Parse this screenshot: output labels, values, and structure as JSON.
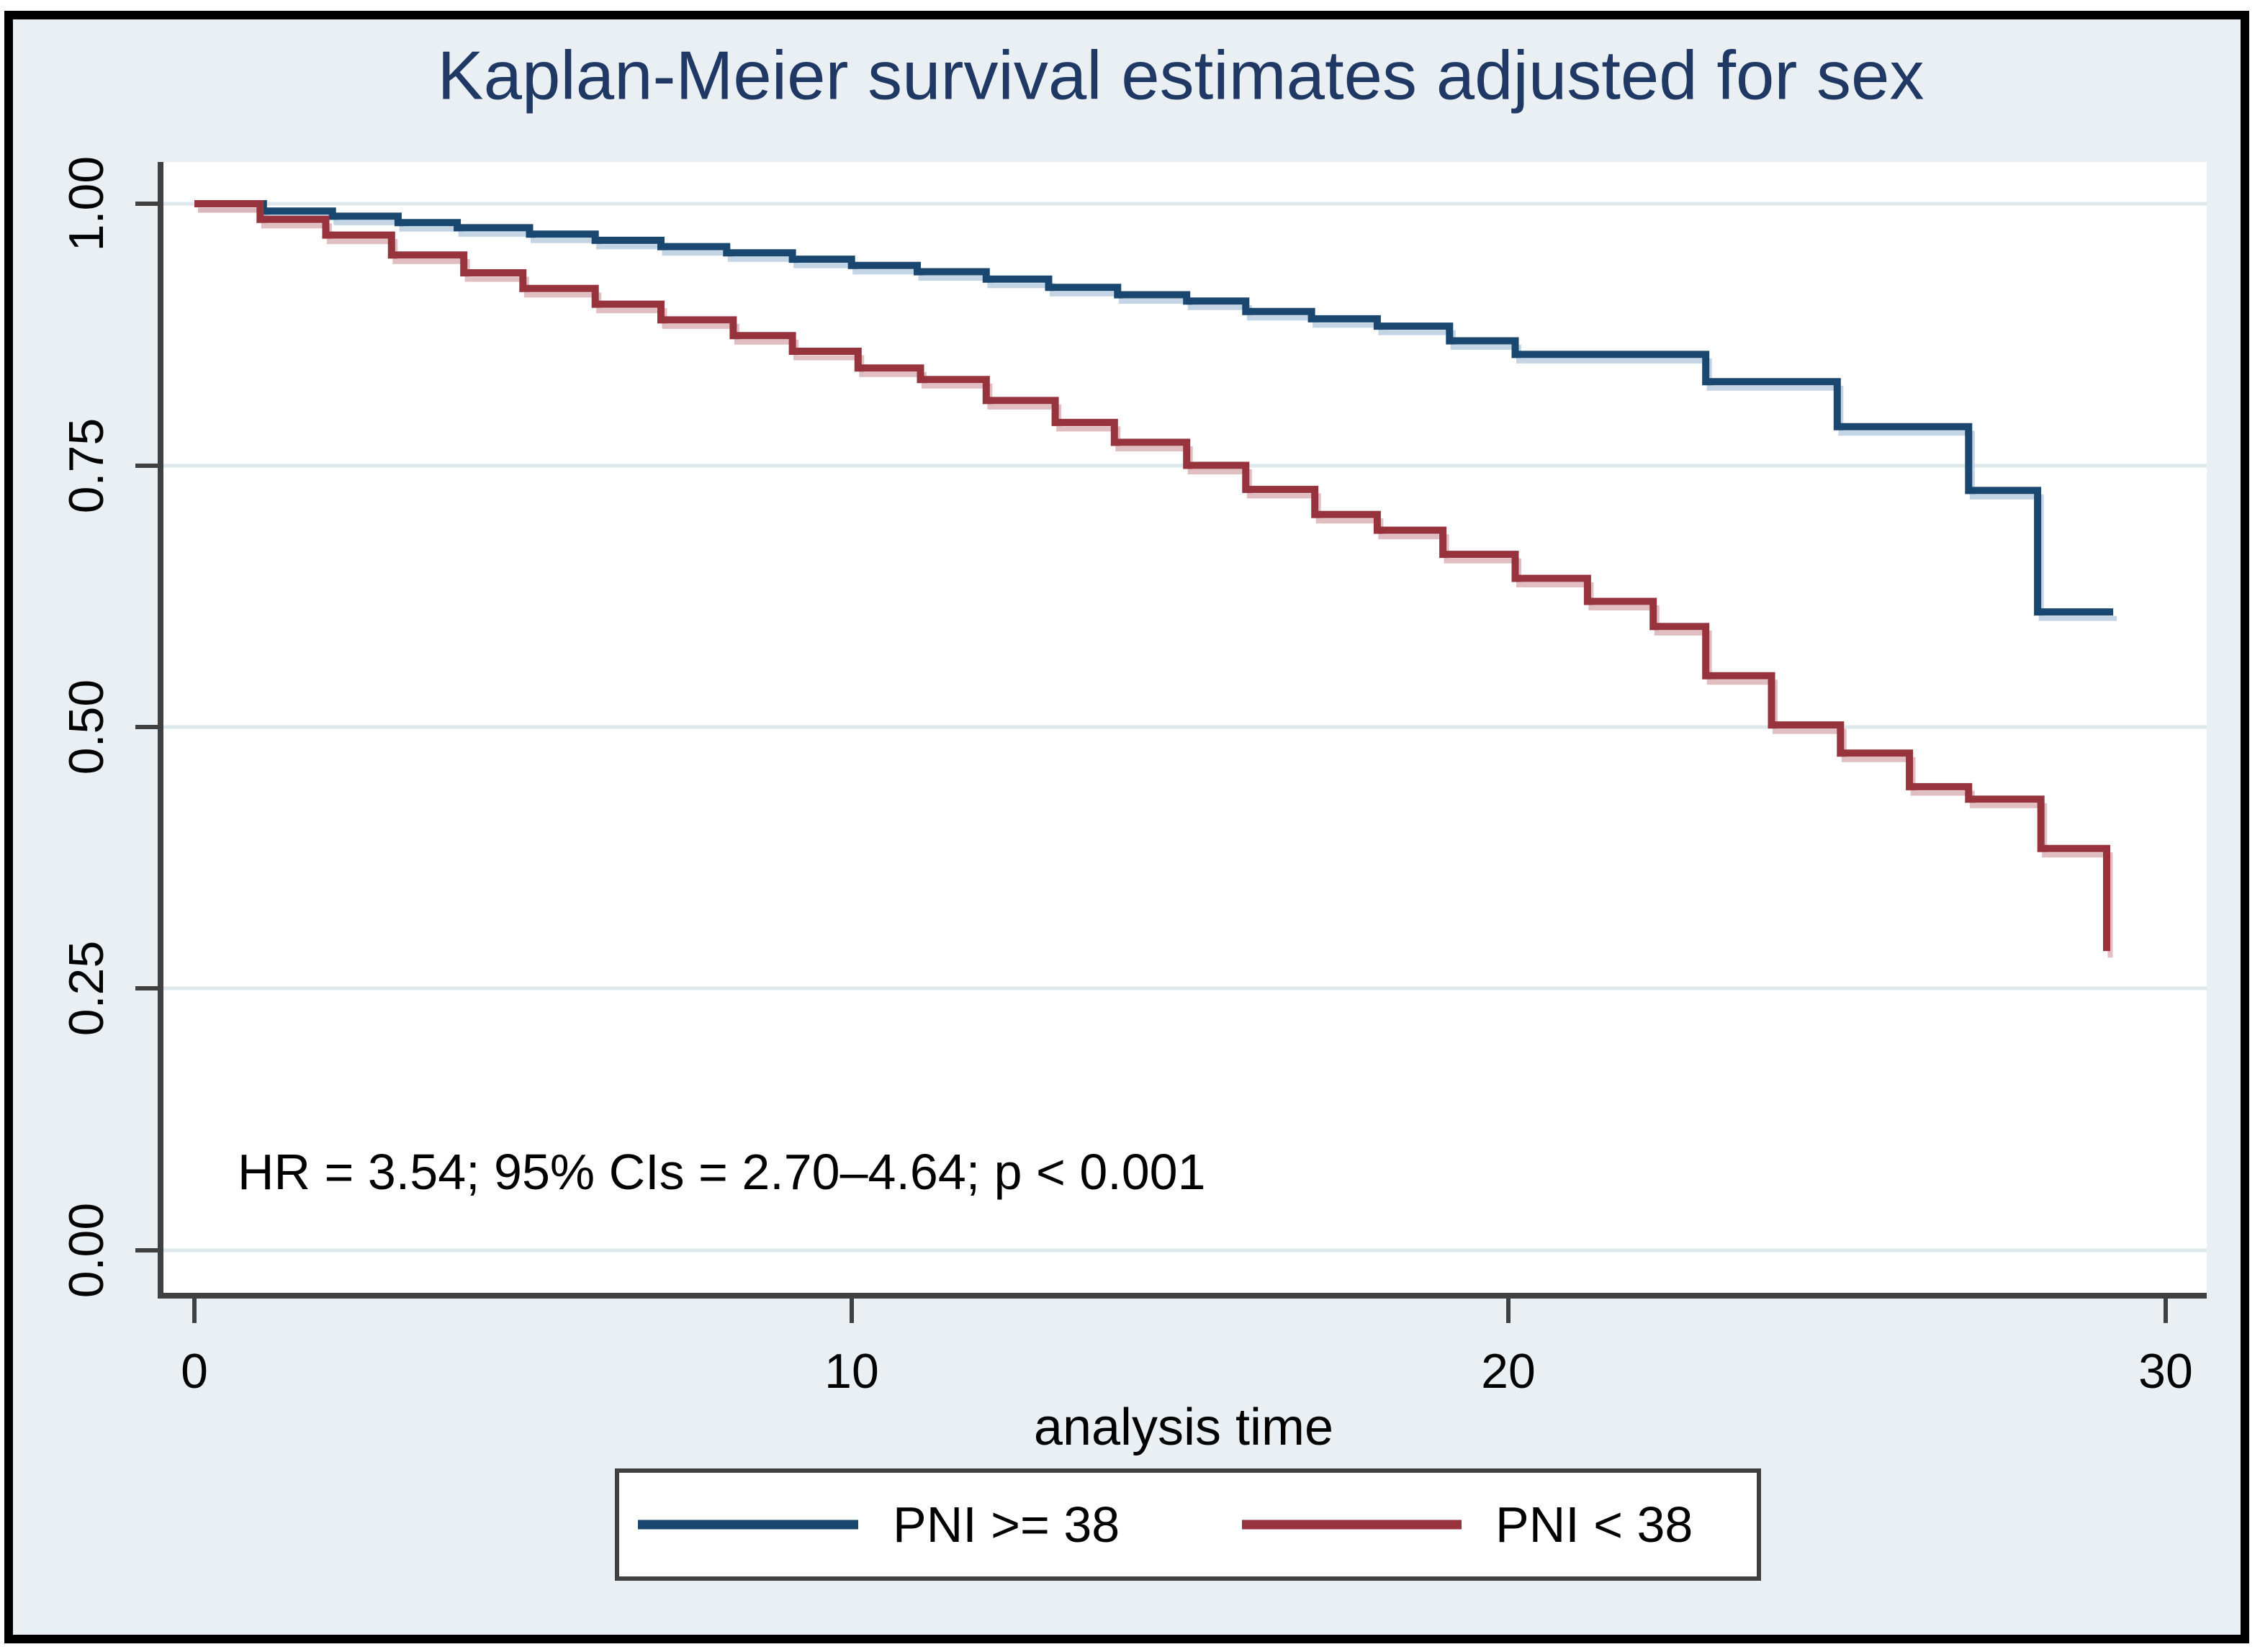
{
  "figure": {
    "title": "Kaplan-Meier survival estimates adjusted for sex",
    "annotation": "HR = 3.54; 95% CIs = 2.70–4.64; p < 0.001"
  },
  "axes": {
    "x": {
      "label": "analysis time",
      "range": [
        0,
        30
      ],
      "ticks": [
        {
          "value": 0,
          "label": "0"
        },
        {
          "value": 10,
          "label": "10"
        },
        {
          "value": 20,
          "label": "20"
        },
        {
          "value": 30,
          "label": "30"
        }
      ]
    },
    "y": {
      "range": [
        0,
        1
      ],
      "ticks": [
        {
          "value": 1.0,
          "label": "1.00"
        },
        {
          "value": 0.75,
          "label": "0.75"
        },
        {
          "value": 0.5,
          "label": "0.50"
        },
        {
          "value": 0.25,
          "label": "0.25"
        },
        {
          "value": 0.0,
          "label": "0.00"
        }
      ]
    }
  },
  "legend": {
    "items": [
      {
        "label": "PNI >= 38",
        "color": "#1a476f"
      },
      {
        "label": "PNI < 38",
        "color": "#96333c"
      }
    ]
  },
  "colors": {
    "title": "#1f3864",
    "outer_background": "#e9eff2",
    "plot_background": "#ffffff",
    "frame_border": "#000000",
    "axis_line": "#404040",
    "gridline": "#dde8ec",
    "series_high_pni": "#1a476f",
    "series_low_pni": "#96333c",
    "shadow_blue": "#b9cde0",
    "shadow_red": "#dcb3b7"
  },
  "chart_data": {
    "type": "line",
    "subtype": "kaplan-meier-step",
    "title": "Kaplan-Meier survival estimates adjusted for sex",
    "xlabel": "analysis time",
    "ylabel": "",
    "xlim": [
      0,
      30
    ],
    "ylim": [
      0,
      1
    ],
    "grid": "horizontal",
    "legend_position": "bottom-center",
    "annotation": "HR = 3.54; 95% CIs = 2.70–4.64; p < 0.001",
    "series": [
      {
        "name": "PNI >= 38",
        "color": "#1a476f",
        "steps": [
          [
            0,
            1.0
          ],
          [
            1.05,
            0.993
          ],
          [
            2.1,
            0.988
          ],
          [
            3.1,
            0.982
          ],
          [
            4.0,
            0.977
          ],
          [
            5.1,
            0.971
          ],
          [
            6.1,
            0.965
          ],
          [
            7.1,
            0.959
          ],
          [
            8.1,
            0.953
          ],
          [
            9.1,
            0.947
          ],
          [
            10.0,
            0.941
          ],
          [
            11.0,
            0.935
          ],
          [
            12.05,
            0.928
          ],
          [
            13.0,
            0.92
          ],
          [
            14.05,
            0.913
          ],
          [
            15.1,
            0.907
          ],
          [
            16.0,
            0.897
          ],
          [
            17.0,
            0.89
          ],
          [
            18.0,
            0.883
          ],
          [
            19.1,
            0.869
          ],
          [
            20.1,
            0.856
          ],
          [
            23.0,
            0.83
          ],
          [
            25.0,
            0.787
          ],
          [
            27.0,
            0.726
          ],
          [
            28.05,
            0.61
          ]
        ],
        "end_t": 29.2
      },
      {
        "name": "PNI < 38",
        "color": "#96333c",
        "steps": [
          [
            0,
            1.0
          ],
          [
            1.0,
            0.985
          ],
          [
            2.0,
            0.97
          ],
          [
            3.0,
            0.951
          ],
          [
            4.1,
            0.934
          ],
          [
            5.0,
            0.919
          ],
          [
            6.1,
            0.904
          ],
          [
            7.1,
            0.889
          ],
          [
            8.2,
            0.874
          ],
          [
            9.1,
            0.859
          ],
          [
            10.1,
            0.843
          ],
          [
            11.05,
            0.832
          ],
          [
            12.05,
            0.812
          ],
          [
            13.1,
            0.791
          ],
          [
            14.0,
            0.772
          ],
          [
            15.1,
            0.75
          ],
          [
            16.0,
            0.727
          ],
          [
            17.05,
            0.703
          ],
          [
            18.0,
            0.688
          ],
          [
            19.0,
            0.665
          ],
          [
            20.1,
            0.642
          ],
          [
            21.2,
            0.62
          ],
          [
            22.2,
            0.596
          ],
          [
            23.0,
            0.549
          ],
          [
            24.0,
            0.502
          ],
          [
            25.05,
            0.475
          ],
          [
            26.1,
            0.443
          ],
          [
            27.0,
            0.431
          ],
          [
            28.1,
            0.384
          ],
          [
            29.1,
            0.286
          ]
        ],
        "end_t": 29.1
      }
    ]
  }
}
